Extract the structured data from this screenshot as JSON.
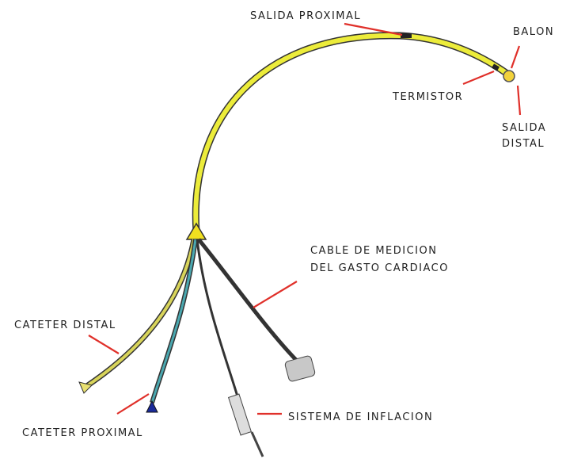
{
  "labels": [
    {
      "id": "salida-proximal",
      "lines": [
        "SALIDA PROXIMAL"
      ]
    },
    {
      "id": "balon",
      "lines": [
        "BALON"
      ]
    },
    {
      "id": "termistor",
      "lines": [
        "TERMISTOR"
      ]
    },
    {
      "id": "salida-distal",
      "lines": [
        "SALIDA",
        "DISTAL"
      ]
    },
    {
      "id": "cable",
      "lines": [
        "CABLE DE MEDICION",
        "DEL GASTO CARDIACO"
      ]
    },
    {
      "id": "cateter-distal",
      "lines": [
        "CATETER DISTAL"
      ]
    },
    {
      "id": "cateter-proximal",
      "lines": [
        "CATETER PROXIMAL"
      ]
    },
    {
      "id": "sistema",
      "lines": [
        "SISTEMA DE INFLACION"
      ]
    }
  ]
}
